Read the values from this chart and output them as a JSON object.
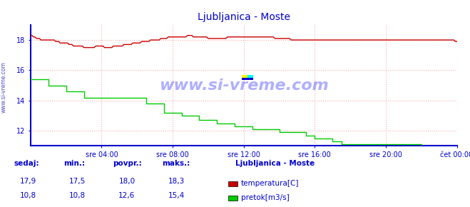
{
  "title": "Ljubljanica - Moste",
  "title_color": "#0000cc",
  "bg_color": "#ffffff",
  "plot_bg_color": "#ffffff",
  "grid_color_v": "#ffaaaa",
  "grid_color_h": "#ffaaaa",
  "grid_style": ":",
  "axis_color": "#0000cc",
  "tick_color": "#0000cc",
  "x_tick_labels": [
    "sre 04:00",
    "sre 08:00",
    "sre 12:00",
    "sre 16:00",
    "sre 20:00",
    "čet 00:00"
  ],
  "x_tick_positions": [
    4,
    8,
    12,
    16,
    20,
    24
  ],
  "ylim": [
    11.0,
    19.0
  ],
  "xlim": [
    0,
    24
  ],
  "y_ticks": [
    12,
    14,
    16,
    18
  ],
  "temp_color": "#cc0000",
  "flow_color": "#00cc00",
  "border_color": "#0000cc",
  "watermark_color": "#0000aa",
  "legend_title": "Ljubljanica - Moste",
  "legend_title_color": "#0000cc",
  "legend_color": "#0000cc",
  "footer_label_color": "#0000cc",
  "footer_value_color": "#0000cc",
  "sedaj_label": "sedaj:",
  "min_label": "min.:",
  "povpr_label": "povpr.:",
  "maks_label": "maks.:",
  "temp_label": "temperatura[C]",
  "flow_label": "pretok[m3/s]",
  "temp_sedaj": "17,9",
  "temp_min": "17,5",
  "temp_povpr": "18,0",
  "temp_maks": "18,3",
  "flow_sedaj": "10,8",
  "flow_min": "10,8",
  "flow_povpr": "12,6",
  "flow_maks": "15,4",
  "temp_data_x": [
    0.0,
    0.083,
    0.167,
    0.25,
    0.333,
    0.417,
    0.5,
    0.583,
    0.667,
    0.75,
    0.833,
    0.917,
    1.0,
    1.083,
    1.167,
    1.25,
    1.333,
    1.417,
    1.5,
    1.583,
    1.667,
    1.75,
    1.833,
    1.917,
    2.0,
    2.083,
    2.167,
    2.25,
    2.333,
    2.417,
    2.5,
    2.583,
    2.667,
    2.75,
    2.833,
    2.917,
    3.0,
    3.083,
    3.167,
    3.25,
    3.333,
    3.417,
    3.5,
    3.583,
    3.667,
    3.75,
    3.833,
    3.917,
    4.0,
    4.083,
    4.167,
    4.25,
    4.333,
    4.417,
    4.5,
    4.583,
    4.667,
    4.75,
    4.833,
    4.917,
    5.0,
    5.083,
    5.167,
    5.25,
    5.333,
    5.417,
    5.5,
    5.583,
    5.667,
    5.75,
    5.833,
    5.917,
    6.0,
    6.083,
    6.167,
    6.25,
    6.333,
    6.417,
    6.5,
    6.583,
    6.667,
    6.75,
    6.833,
    6.917,
    7.0,
    7.083,
    7.167,
    7.25,
    7.333,
    7.417,
    7.5,
    7.583,
    7.667,
    7.75,
    7.833,
    7.917,
    8.0,
    8.083,
    8.167,
    8.25,
    8.333,
    8.417,
    8.5,
    8.583,
    8.667,
    8.75,
    8.833,
    8.917,
    9.0,
    9.083,
    9.167,
    9.25,
    9.333,
    9.417,
    9.5,
    9.583,
    9.667,
    9.75,
    9.833,
    9.917,
    10.0,
    10.083,
    10.167,
    10.25,
    10.333,
    10.417,
    10.5,
    10.583,
    10.667,
    10.75,
    10.833,
    10.917,
    11.0,
    11.083,
    11.167,
    11.25,
    11.333,
    11.417,
    11.5,
    11.583,
    11.667,
    11.75,
    11.833,
    11.917,
    12.0,
    12.083,
    12.167,
    12.25,
    12.333,
    12.417,
    12.5,
    12.583,
    12.667,
    12.75,
    12.833,
    12.917,
    13.0,
    13.083,
    13.167,
    13.25,
    13.333,
    13.417,
    13.5,
    13.583,
    13.667,
    13.75,
    13.833,
    13.917,
    14.0,
    14.083,
    14.167,
    14.25,
    14.333,
    14.417,
    14.5,
    14.583,
    14.667,
    14.75,
    14.833,
    14.917,
    15.0,
    15.083,
    15.167,
    15.25,
    15.333,
    15.417,
    15.5,
    15.583,
    15.667,
    15.75,
    15.833,
    15.917,
    16.0,
    16.083,
    16.167,
    16.25,
    16.333,
    16.417,
    16.5,
    16.583,
    16.667,
    16.75,
    16.833,
    16.917,
    17.0,
    17.083,
    17.167,
    17.25,
    17.333,
    17.417,
    17.5,
    17.583,
    17.667,
    17.75,
    17.833,
    17.917,
    18.0,
    18.083,
    18.167,
    18.25,
    18.333,
    18.417,
    18.5,
    18.583,
    18.667,
    18.75,
    18.833,
    18.917,
    19.0,
    19.083,
    19.167,
    19.25,
    19.333,
    19.417,
    19.5,
    19.583,
    19.667,
    19.75,
    19.833,
    19.917,
    20.0,
    20.083,
    20.167,
    20.25,
    20.333,
    20.417,
    20.5,
    20.583,
    20.667,
    20.75,
    20.833,
    20.917,
    21.0,
    21.083,
    21.167,
    21.25,
    21.333,
    21.417,
    21.5,
    21.583,
    21.667,
    21.75,
    21.833,
    21.917,
    22.0,
    22.083,
    22.167,
    22.25,
    22.333,
    22.417,
    22.5,
    22.583,
    22.667,
    22.75,
    22.833,
    22.917,
    23.0,
    23.083,
    23.167,
    23.25,
    23.333,
    23.417,
    23.5,
    23.583,
    23.667,
    23.75,
    23.833,
    23.917,
    24.0
  ],
  "temp_data_y": [
    18.3,
    18.3,
    18.2,
    18.2,
    18.1,
    18.1,
    18.1,
    18.0,
    18.0,
    18.0,
    18.0,
    18.0,
    18.0,
    18.0,
    18.0,
    18.0,
    18.0,
    17.9,
    17.9,
    17.9,
    17.8,
    17.8,
    17.8,
    17.8,
    17.8,
    17.8,
    17.7,
    17.7,
    17.7,
    17.6,
    17.6,
    17.6,
    17.6,
    17.6,
    17.6,
    17.6,
    17.5,
    17.5,
    17.5,
    17.5,
    17.5,
    17.5,
    17.5,
    17.5,
    17.6,
    17.6,
    17.6,
    17.6,
    17.6,
    17.6,
    17.5,
    17.5,
    17.5,
    17.5,
    17.5,
    17.5,
    17.6,
    17.6,
    17.6,
    17.6,
    17.6,
    17.6,
    17.6,
    17.7,
    17.7,
    17.7,
    17.7,
    17.7,
    17.7,
    17.8,
    17.8,
    17.8,
    17.8,
    17.8,
    17.8,
    17.9,
    17.9,
    17.9,
    17.9,
    17.9,
    17.9,
    18.0,
    18.0,
    18.0,
    18.0,
    18.0,
    18.0,
    18.0,
    18.1,
    18.1,
    18.1,
    18.1,
    18.1,
    18.2,
    18.2,
    18.2,
    18.2,
    18.2,
    18.2,
    18.2,
    18.2,
    18.2,
    18.2,
    18.2,
    18.2,
    18.2,
    18.3,
    18.3,
    18.3,
    18.3,
    18.2,
    18.2,
    18.2,
    18.2,
    18.2,
    18.2,
    18.2,
    18.2,
    18.2,
    18.2,
    18.1,
    18.1,
    18.1,
    18.1,
    18.1,
    18.1,
    18.1,
    18.1,
    18.1,
    18.1,
    18.1,
    18.1,
    18.1,
    18.2,
    18.2,
    18.2,
    18.2,
    18.2,
    18.2,
    18.2,
    18.2,
    18.2,
    18.2,
    18.2,
    18.2,
    18.2,
    18.2,
    18.2,
    18.2,
    18.2,
    18.2,
    18.2,
    18.2,
    18.2,
    18.2,
    18.2,
    18.2,
    18.2,
    18.2,
    18.2,
    18.2,
    18.2,
    18.2,
    18.2,
    18.2,
    18.1,
    18.1,
    18.1,
    18.1,
    18.1,
    18.1,
    18.1,
    18.1,
    18.1,
    18.1,
    18.1,
    18.0,
    18.0,
    18.0,
    18.0,
    18.0,
    18.0,
    18.0,
    18.0,
    18.0,
    18.0,
    18.0,
    18.0,
    18.0,
    18.0,
    18.0,
    18.0,
    18.0,
    18.0,
    18.0,
    18.0,
    18.0,
    18.0,
    18.0,
    18.0,
    18.0,
    18.0,
    18.0,
    18.0,
    18.0,
    18.0,
    18.0,
    18.0,
    18.0,
    18.0,
    18.0,
    18.0,
    18.0,
    18.0,
    18.0,
    18.0,
    18.0,
    18.0,
    18.0,
    18.0,
    18.0,
    18.0,
    18.0,
    18.0,
    18.0,
    18.0,
    18.0,
    18.0,
    18.0,
    18.0,
    18.0,
    18.0,
    18.0,
    18.0,
    18.0,
    18.0,
    18.0,
    18.0,
    18.0,
    18.0,
    18.0,
    18.0,
    18.0,
    18.0,
    18.0,
    18.0,
    18.0,
    18.0,
    18.0,
    18.0,
    18.0,
    18.0,
    18.0,
    18.0,
    18.0,
    18.0,
    18.0,
    18.0,
    18.0,
    18.0,
    18.0,
    18.0,
    18.0,
    18.0,
    18.0,
    18.0,
    18.0,
    18.0,
    18.0,
    18.0,
    18.0,
    18.0,
    18.0,
    18.0,
    18.0,
    18.0,
    18.0,
    18.0,
    18.0,
    18.0,
    18.0,
    18.0,
    18.0,
    18.0,
    18.0,
    18.0,
    18.0,
    17.9,
    17.9
  ],
  "flow_data_x": [
    0.0,
    0.5,
    1.0,
    1.5,
    2.0,
    2.5,
    3.0,
    3.5,
    4.0,
    4.5,
    5.0,
    5.5,
    6.0,
    6.5,
    7.0,
    7.5,
    8.0,
    8.5,
    9.0,
    9.5,
    10.0,
    10.5,
    11.0,
    11.5,
    12.0,
    12.5,
    13.0,
    13.5,
    14.0,
    14.5,
    15.0,
    15.5,
    16.0,
    16.5,
    17.0,
    17.5,
    18.0,
    18.5,
    19.0,
    19.5,
    20.0,
    20.5,
    21.0,
    21.5,
    22.0,
    22.5,
    23.0,
    23.5,
    24.0
  ],
  "flow_data_y": [
    15.4,
    15.4,
    15.0,
    15.0,
    14.6,
    14.6,
    14.2,
    14.2,
    14.2,
    14.2,
    14.2,
    14.2,
    14.2,
    13.8,
    13.8,
    13.2,
    13.2,
    13.0,
    13.0,
    12.7,
    12.7,
    12.5,
    12.5,
    12.3,
    12.3,
    12.1,
    12.1,
    12.1,
    11.9,
    11.9,
    11.9,
    11.7,
    11.5,
    11.5,
    11.3,
    11.1,
    11.1,
    11.1,
    11.1,
    11.1,
    11.1,
    11.1,
    11.1,
    11.1,
    10.9,
    10.9,
    10.9,
    10.9,
    10.8
  ]
}
